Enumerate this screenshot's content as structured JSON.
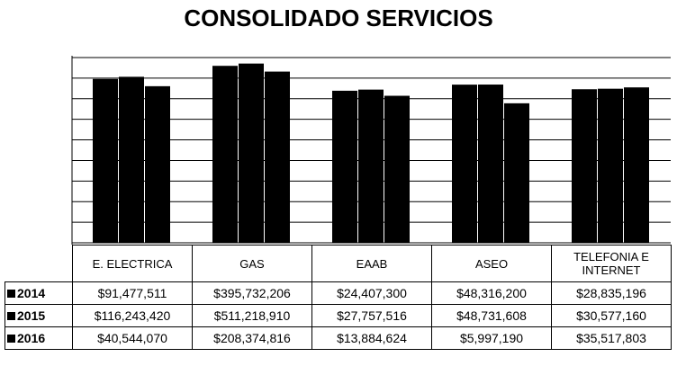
{
  "chart_data": {
    "type": "bar",
    "title": "CONSOLIDADO SERVICIOS",
    "categories": [
      "E. ELECTRICA",
      "GAS",
      "EAAB",
      "ASEO",
      "TELEFONIA E INTERNET"
    ],
    "series": [
      {
        "name": "2014",
        "color": "#000000",
        "values": [
          91477511,
          395732206,
          24407300,
          48316200,
          28835196
        ],
        "value_labels": [
          "$91,477,511",
          "$395,732,206",
          "$24,407,300",
          "$48,316,200",
          "$28,835,196"
        ]
      },
      {
        "name": "2015",
        "color": "#000000",
        "values": [
          116243420,
          511218910,
          27757516,
          48731608,
          30577160
        ],
        "value_labels": [
          "$116,243,420",
          "$511,218,910",
          "$27,757,516",
          "$48,731,608",
          "$30,577,160"
        ]
      },
      {
        "name": "2016",
        "color": "#000000",
        "values": [
          40544070,
          208374816,
          13884624,
          5997190,
          35517803
        ],
        "value_labels": [
          "$40,544,070",
          "$208,374,816",
          "$13,884,624",
          "$5,997,190",
          "$35,517,803"
        ]
      }
    ],
    "log_scale": true,
    "ylim": [
      1,
      1000000000
    ],
    "yticks": [
      1,
      10,
      100,
      1000,
      10000,
      100000,
      1000000,
      10000000,
      100000000,
      1000000000
    ],
    "grid": true
  }
}
